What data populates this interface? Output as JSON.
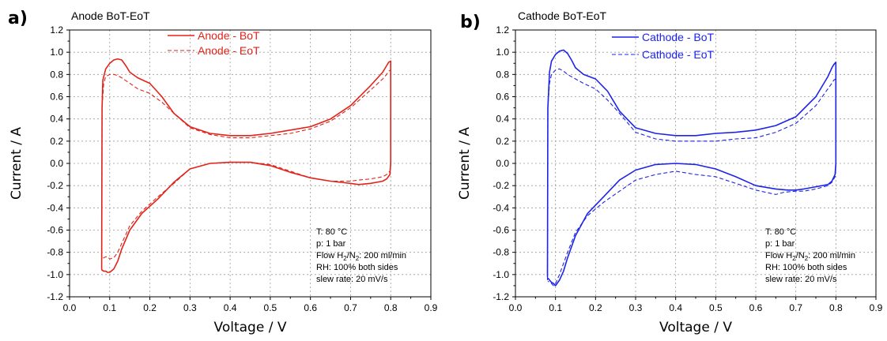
{
  "chart_data": [
    {
      "type": "line",
      "panel_label": "a)",
      "title": "Anode BoT-EoT",
      "xlabel": "Voltage / V",
      "ylabel": "Current / A",
      "xlim": [
        0.0,
        0.9
      ],
      "ylim": [
        -1.2,
        1.2
      ],
      "xticks": [
        "0.0",
        "0.1",
        "0.2",
        "0.3",
        "0.4",
        "0.5",
        "0.6",
        "0.7",
        "0.8",
        "0.9"
      ],
      "yticks": [
        "1.2",
        "1.0",
        "0.8",
        "0.6",
        "0.4",
        "0.2",
        "0.0",
        "-0.2",
        "-0.4",
        "-0.6",
        "-0.8",
        "-1.0",
        "-1.2"
      ],
      "grid": true,
      "legend_position": "top-center",
      "color": "#e2231a",
      "series": [
        {
          "name": "Anode - BoT",
          "style": "solid",
          "x": [
            0.08,
            0.081,
            0.083,
            0.09,
            0.1,
            0.11,
            0.12,
            0.13,
            0.14,
            0.15,
            0.17,
            0.2,
            0.23,
            0.26,
            0.3,
            0.35,
            0.4,
            0.45,
            0.5,
            0.55,
            0.6,
            0.65,
            0.7,
            0.75,
            0.78,
            0.79,
            0.795,
            0.8,
            0.8,
            0.8,
            0.798,
            0.79,
            0.78,
            0.75,
            0.72,
            0.7,
            0.65,
            0.6,
            0.55,
            0.5,
            0.45,
            0.4,
            0.35,
            0.3,
            0.26,
            0.22,
            0.18,
            0.15,
            0.13,
            0.12,
            0.11,
            0.1,
            0.095,
            0.09,
            0.085,
            0.081,
            0.08
          ],
          "y": [
            -0.95,
            0.5,
            0.75,
            0.85,
            0.9,
            0.93,
            0.94,
            0.93,
            0.88,
            0.82,
            0.77,
            0.72,
            0.6,
            0.45,
            0.33,
            0.27,
            0.25,
            0.25,
            0.27,
            0.3,
            0.33,
            0.4,
            0.52,
            0.7,
            0.82,
            0.88,
            0.91,
            0.92,
            0.6,
            0.0,
            -0.1,
            -0.14,
            -0.16,
            -0.18,
            -0.19,
            -0.18,
            -0.16,
            -0.13,
            -0.08,
            -0.02,
            0.01,
            0.01,
            0.0,
            -0.05,
            -0.17,
            -0.32,
            -0.45,
            -0.6,
            -0.77,
            -0.88,
            -0.95,
            -0.98,
            -0.98,
            -0.97,
            -0.97,
            -0.96,
            -0.95
          ]
        },
        {
          "name": "Anode - EoT",
          "style": "dashed",
          "x": [
            0.08,
            0.081,
            0.085,
            0.09,
            0.1,
            0.11,
            0.12,
            0.13,
            0.15,
            0.17,
            0.2,
            0.23,
            0.26,
            0.3,
            0.35,
            0.4,
            0.45,
            0.5,
            0.55,
            0.6,
            0.65,
            0.7,
            0.75,
            0.78,
            0.79,
            0.795,
            0.8,
            0.8,
            0.8,
            0.798,
            0.79,
            0.78,
            0.75,
            0.72,
            0.7,
            0.65,
            0.6,
            0.55,
            0.5,
            0.45,
            0.4,
            0.35,
            0.3,
            0.26,
            0.22,
            0.18,
            0.15,
            0.13,
            0.12,
            0.11,
            0.1,
            0.095,
            0.09,
            0.085,
            0.081
          ],
          "y": [
            -0.85,
            0.5,
            0.72,
            0.78,
            0.8,
            0.8,
            0.79,
            0.77,
            0.72,
            0.67,
            0.63,
            0.55,
            0.45,
            0.32,
            0.26,
            0.23,
            0.23,
            0.25,
            0.27,
            0.31,
            0.38,
            0.5,
            0.66,
            0.76,
            0.8,
            0.83,
            0.84,
            0.5,
            -0.02,
            -0.07,
            -0.1,
            -0.12,
            -0.14,
            -0.15,
            -0.16,
            -0.16,
            -0.13,
            -0.07,
            -0.01,
            0.01,
            0.01,
            0.0,
            -0.05,
            -0.18,
            -0.3,
            -0.43,
            -0.56,
            -0.72,
            -0.8,
            -0.85,
            -0.86,
            -0.84,
            -0.84,
            -0.85,
            -0.85
          ]
        }
      ],
      "conditions": [
        "T: 80 °C",
        "p: 1 bar",
        "Flow H2/N2: 200 ml/min",
        "RH: 100% both sides",
        "slew rate: 20 mV/s"
      ]
    },
    {
      "type": "line",
      "panel_label": "b)",
      "title": "Cathode BoT-EoT",
      "xlabel": "Voltage / V",
      "ylabel": "Current / A",
      "xlim": [
        0.0,
        0.9
      ],
      "ylim": [
        -1.2,
        1.2
      ],
      "xticks": [
        "0.0",
        "0.1",
        "0.2",
        "0.3",
        "0.4",
        "0.5",
        "0.6",
        "0.7",
        "0.8",
        "0.9"
      ],
      "yticks": [
        "1.2",
        "1.0",
        "0.8",
        "0.6",
        "0.4",
        "0.2",
        "0.0",
        "-0.2",
        "-0.4",
        "-0.6",
        "-0.8",
        "-1.0",
        "-1.2"
      ],
      "grid": true,
      "legend_position": "top-center",
      "color": "#1d24e8",
      "series": [
        {
          "name": "Cathode - BoT",
          "style": "solid",
          "x": [
            0.08,
            0.081,
            0.085,
            0.09,
            0.1,
            0.11,
            0.12,
            0.13,
            0.14,
            0.15,
            0.17,
            0.2,
            0.23,
            0.26,
            0.3,
            0.35,
            0.4,
            0.45,
            0.5,
            0.55,
            0.6,
            0.65,
            0.7,
            0.75,
            0.78,
            0.79,
            0.795,
            0.8,
            0.8,
            0.8,
            0.798,
            0.79,
            0.78,
            0.75,
            0.72,
            0.7,
            0.68,
            0.65,
            0.6,
            0.55,
            0.5,
            0.45,
            0.4,
            0.35,
            0.3,
            0.26,
            0.22,
            0.18,
            0.15,
            0.13,
            0.12,
            0.11,
            0.1,
            0.095,
            0.09,
            0.085,
            0.081
          ],
          "y": [
            -1.02,
            0.5,
            0.82,
            0.92,
            0.98,
            1.01,
            1.02,
            0.99,
            0.93,
            0.86,
            0.8,
            0.76,
            0.65,
            0.47,
            0.32,
            0.27,
            0.25,
            0.25,
            0.27,
            0.28,
            0.3,
            0.34,
            0.42,
            0.6,
            0.78,
            0.86,
            0.89,
            0.91,
            0.6,
            0.0,
            -0.1,
            -0.16,
            -0.19,
            -0.21,
            -0.23,
            -0.24,
            -0.24,
            -0.23,
            -0.2,
            -0.12,
            -0.05,
            -0.01,
            0.0,
            -0.01,
            -0.06,
            -0.15,
            -0.3,
            -0.45,
            -0.65,
            -0.85,
            -0.97,
            -1.05,
            -1.1,
            -1.08,
            -1.07,
            -1.05,
            -1.03
          ]
        },
        {
          "name": "Cathode - EoT",
          "style": "dashed",
          "x": [
            0.08,
            0.081,
            0.085,
            0.09,
            0.1,
            0.11,
            0.12,
            0.13,
            0.15,
            0.17,
            0.2,
            0.23,
            0.26,
            0.3,
            0.35,
            0.4,
            0.45,
            0.5,
            0.55,
            0.6,
            0.65,
            0.7,
            0.75,
            0.78,
            0.79,
            0.795,
            0.8,
            0.8,
            0.8,
            0.798,
            0.79,
            0.78,
            0.75,
            0.72,
            0.7,
            0.67,
            0.65,
            0.6,
            0.55,
            0.5,
            0.45,
            0.4,
            0.35,
            0.3,
            0.26,
            0.22,
            0.18,
            0.15,
            0.13,
            0.12,
            0.11,
            0.1,
            0.095,
            0.09,
            0.085,
            0.081
          ],
          "y": [
            -1.05,
            0.5,
            0.72,
            0.8,
            0.84,
            0.85,
            0.83,
            0.8,
            0.76,
            0.72,
            0.67,
            0.57,
            0.45,
            0.28,
            0.22,
            0.2,
            0.2,
            0.2,
            0.22,
            0.23,
            0.28,
            0.36,
            0.52,
            0.67,
            0.72,
            0.75,
            0.76,
            0.4,
            -0.05,
            -0.12,
            -0.17,
            -0.2,
            -0.23,
            -0.25,
            -0.25,
            -0.26,
            -0.28,
            -0.24,
            -0.18,
            -0.12,
            -0.1,
            -0.07,
            -0.1,
            -0.15,
            -0.25,
            -0.35,
            -0.47,
            -0.62,
            -0.8,
            -0.9,
            -1.0,
            -1.08,
            -1.1,
            -1.08,
            -1.07,
            -1.06
          ]
        }
      ],
      "conditions": [
        "T: 80 °C",
        "p: 1 bar",
        "Flow H2/N2: 200 ml/min",
        "RH: 100% both sides",
        "slew rate: 20 mV/s"
      ]
    }
  ]
}
